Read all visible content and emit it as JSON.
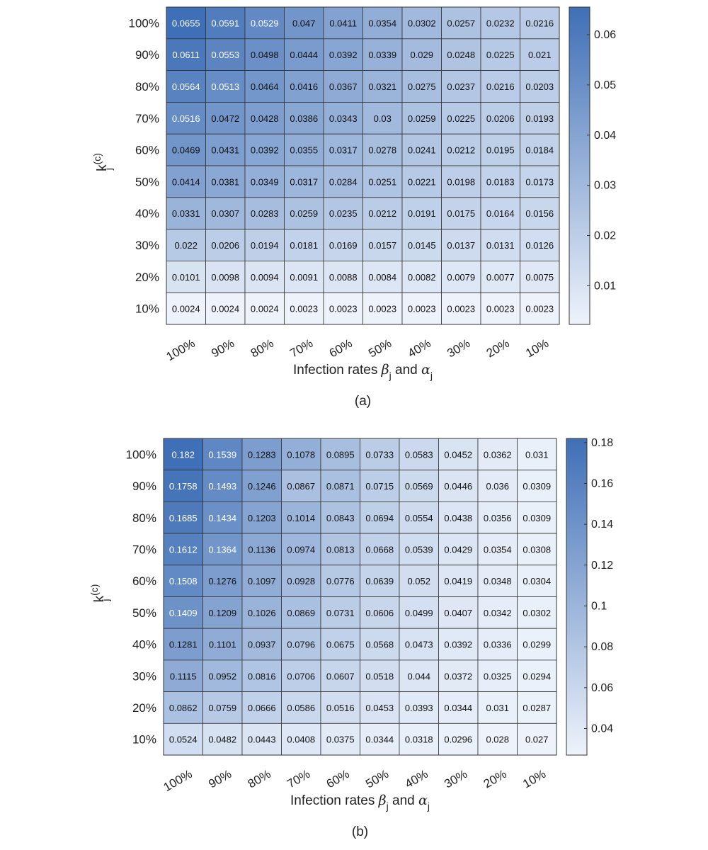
{
  "chart_data": [
    {
      "type": "heatmap",
      "panel_label": "(a)",
      "x_categories": [
        "100%",
        "90%",
        "80%",
        "70%",
        "60%",
        "50%",
        "40%",
        "30%",
        "20%",
        "10%"
      ],
      "y_categories": [
        "100%",
        "90%",
        "80%",
        "70%",
        "60%",
        "50%",
        "40%",
        "30%",
        "20%",
        "10%"
      ],
      "xlabel_prefix": "Infection rates ",
      "xlabel_beta": "β",
      "xlabel_and": " and ",
      "xlabel_alpha": "α",
      "xlabel_sub": "j",
      "ylabel_base": "k",
      "ylabel_sub": "j",
      "ylabel_sup": "(c)",
      "values": [
        [
          0.0655,
          0.0591,
          0.0529,
          0.047,
          0.0411,
          0.0354,
          0.0302,
          0.0257,
          0.0232,
          0.0216
        ],
        [
          0.0611,
          0.0553,
          0.0498,
          0.0444,
          0.0392,
          0.0339,
          0.029,
          0.0248,
          0.0225,
          0.021
        ],
        [
          0.0564,
          0.0513,
          0.0464,
          0.0416,
          0.0367,
          0.0321,
          0.0275,
          0.0237,
          0.0216,
          0.0203
        ],
        [
          0.0516,
          0.0472,
          0.0428,
          0.0386,
          0.0343,
          0.03,
          0.0259,
          0.0225,
          0.0206,
          0.0193
        ],
        [
          0.0469,
          0.0431,
          0.0392,
          0.0355,
          0.0317,
          0.0278,
          0.0241,
          0.0212,
          0.0195,
          0.0184
        ],
        [
          0.0414,
          0.0381,
          0.0349,
          0.0317,
          0.0284,
          0.0251,
          0.0221,
          0.0198,
          0.0183,
          0.0173
        ],
        [
          0.0331,
          0.0307,
          0.0283,
          0.0259,
          0.0235,
          0.0212,
          0.0191,
          0.0175,
          0.0164,
          0.0156
        ],
        [
          0.022,
          0.0206,
          0.0194,
          0.0181,
          0.0169,
          0.0157,
          0.0145,
          0.0137,
          0.0131,
          0.0126
        ],
        [
          0.0101,
          0.0098,
          0.0094,
          0.0091,
          0.0088,
          0.0084,
          0.0082,
          0.0079,
          0.0077,
          0.0075
        ],
        [
          0.0024,
          0.0024,
          0.0024,
          0.0023,
          0.0023,
          0.0023,
          0.0023,
          0.0023,
          0.0023,
          0.0023
        ]
      ],
      "colorbar": {
        "range": [
          0.0023,
          0.0655
        ],
        "ticks": [
          0.01,
          0.02,
          0.03,
          0.04,
          0.05,
          0.06
        ],
        "tick_labels": [
          "0.01",
          "0.02",
          "0.03",
          "0.04",
          "0.05",
          "0.06"
        ]
      },
      "colors": {
        "low": "#eef3fb",
        "high": "#3f6fb6"
      },
      "white_text_above": 0.0505,
      "grid": true
    },
    {
      "type": "heatmap",
      "panel_label": "(b)",
      "x_categories": [
        "100%",
        "90%",
        "80%",
        "70%",
        "60%",
        "50%",
        "40%",
        "30%",
        "20%",
        "10%"
      ],
      "y_categories": [
        "100%",
        "90%",
        "80%",
        "70%",
        "60%",
        "50%",
        "40%",
        "30%",
        "20%",
        "10%"
      ],
      "xlabel_prefix": "Infection rates ",
      "xlabel_beta": "β",
      "xlabel_and": " and ",
      "xlabel_alpha": "α",
      "xlabel_sub": "j",
      "ylabel_base": "k",
      "ylabel_sub": "j",
      "ylabel_sup": "(c)",
      "values": [
        [
          0.182,
          0.1539,
          0.1283,
          0.1078,
          0.0895,
          0.0733,
          0.0583,
          0.0452,
          0.0362,
          0.031
        ],
        [
          0.1758,
          0.1493,
          0.1246,
          0.0867,
          0.0871,
          0.0715,
          0.0569,
          0.0446,
          0.036,
          0.0309
        ],
        [
          0.1685,
          0.1434,
          0.1203,
          0.1014,
          0.0843,
          0.0694,
          0.0554,
          0.0438,
          0.0356,
          0.0309
        ],
        [
          0.1612,
          0.1364,
          0.1136,
          0.0974,
          0.0813,
          0.0668,
          0.0539,
          0.0429,
          0.0354,
          0.0308
        ],
        [
          0.1508,
          0.1276,
          0.1097,
          0.0928,
          0.0776,
          0.0639,
          0.052,
          0.0419,
          0.0348,
          0.0304
        ],
        [
          0.1409,
          0.1209,
          0.1026,
          0.0869,
          0.0731,
          0.0606,
          0.0499,
          0.0407,
          0.0342,
          0.0302
        ],
        [
          0.1281,
          0.1101,
          0.0937,
          0.0796,
          0.0675,
          0.0568,
          0.0473,
          0.0392,
          0.0336,
          0.0299
        ],
        [
          0.1115,
          0.0952,
          0.0816,
          0.0706,
          0.0607,
          0.0518,
          0.044,
          0.0372,
          0.0325,
          0.0294
        ],
        [
          0.0862,
          0.0759,
          0.0666,
          0.0586,
          0.0516,
          0.0453,
          0.0393,
          0.0344,
          0.031,
          0.0287
        ],
        [
          0.0524,
          0.0482,
          0.0443,
          0.0408,
          0.0375,
          0.0344,
          0.0318,
          0.0296,
          0.028,
          0.027
        ]
      ],
      "colorbar": {
        "range": [
          0.027,
          0.182
        ],
        "ticks": [
          0.04,
          0.06,
          0.08,
          0.1,
          0.12,
          0.14,
          0.16,
          0.18
        ],
        "tick_labels": [
          "0.04",
          "0.06",
          "0.08",
          "0.1",
          "0.12",
          "0.14",
          "0.16",
          "0.18"
        ]
      },
      "colors": {
        "low": "#eef3fb",
        "high": "#3f6fb6"
      },
      "white_text_above": 0.135,
      "grid": true
    }
  ]
}
